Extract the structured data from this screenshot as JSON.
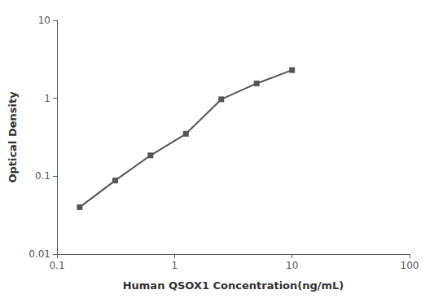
{
  "chart_data": {
    "type": "line",
    "x": [
      0.156,
      0.3125,
      0.625,
      1.25,
      2.5,
      5.0,
      10.0
    ],
    "values": [
      0.04,
      0.088,
      0.185,
      0.35,
      0.97,
      1.55,
      2.3
    ],
    "xlabel": "Human QSOX1 Concentration(ng/mL)",
    "ylabel": "Optical Density",
    "xlim": [
      0.1,
      100
    ],
    "ylim": [
      0.01,
      10
    ],
    "xticks": [
      0.1,
      1,
      10,
      100
    ],
    "yticks": [
      0.01,
      0.1,
      1,
      10
    ],
    "log": true,
    "grid": false,
    "color": "#555555",
    "marker": "square"
  }
}
